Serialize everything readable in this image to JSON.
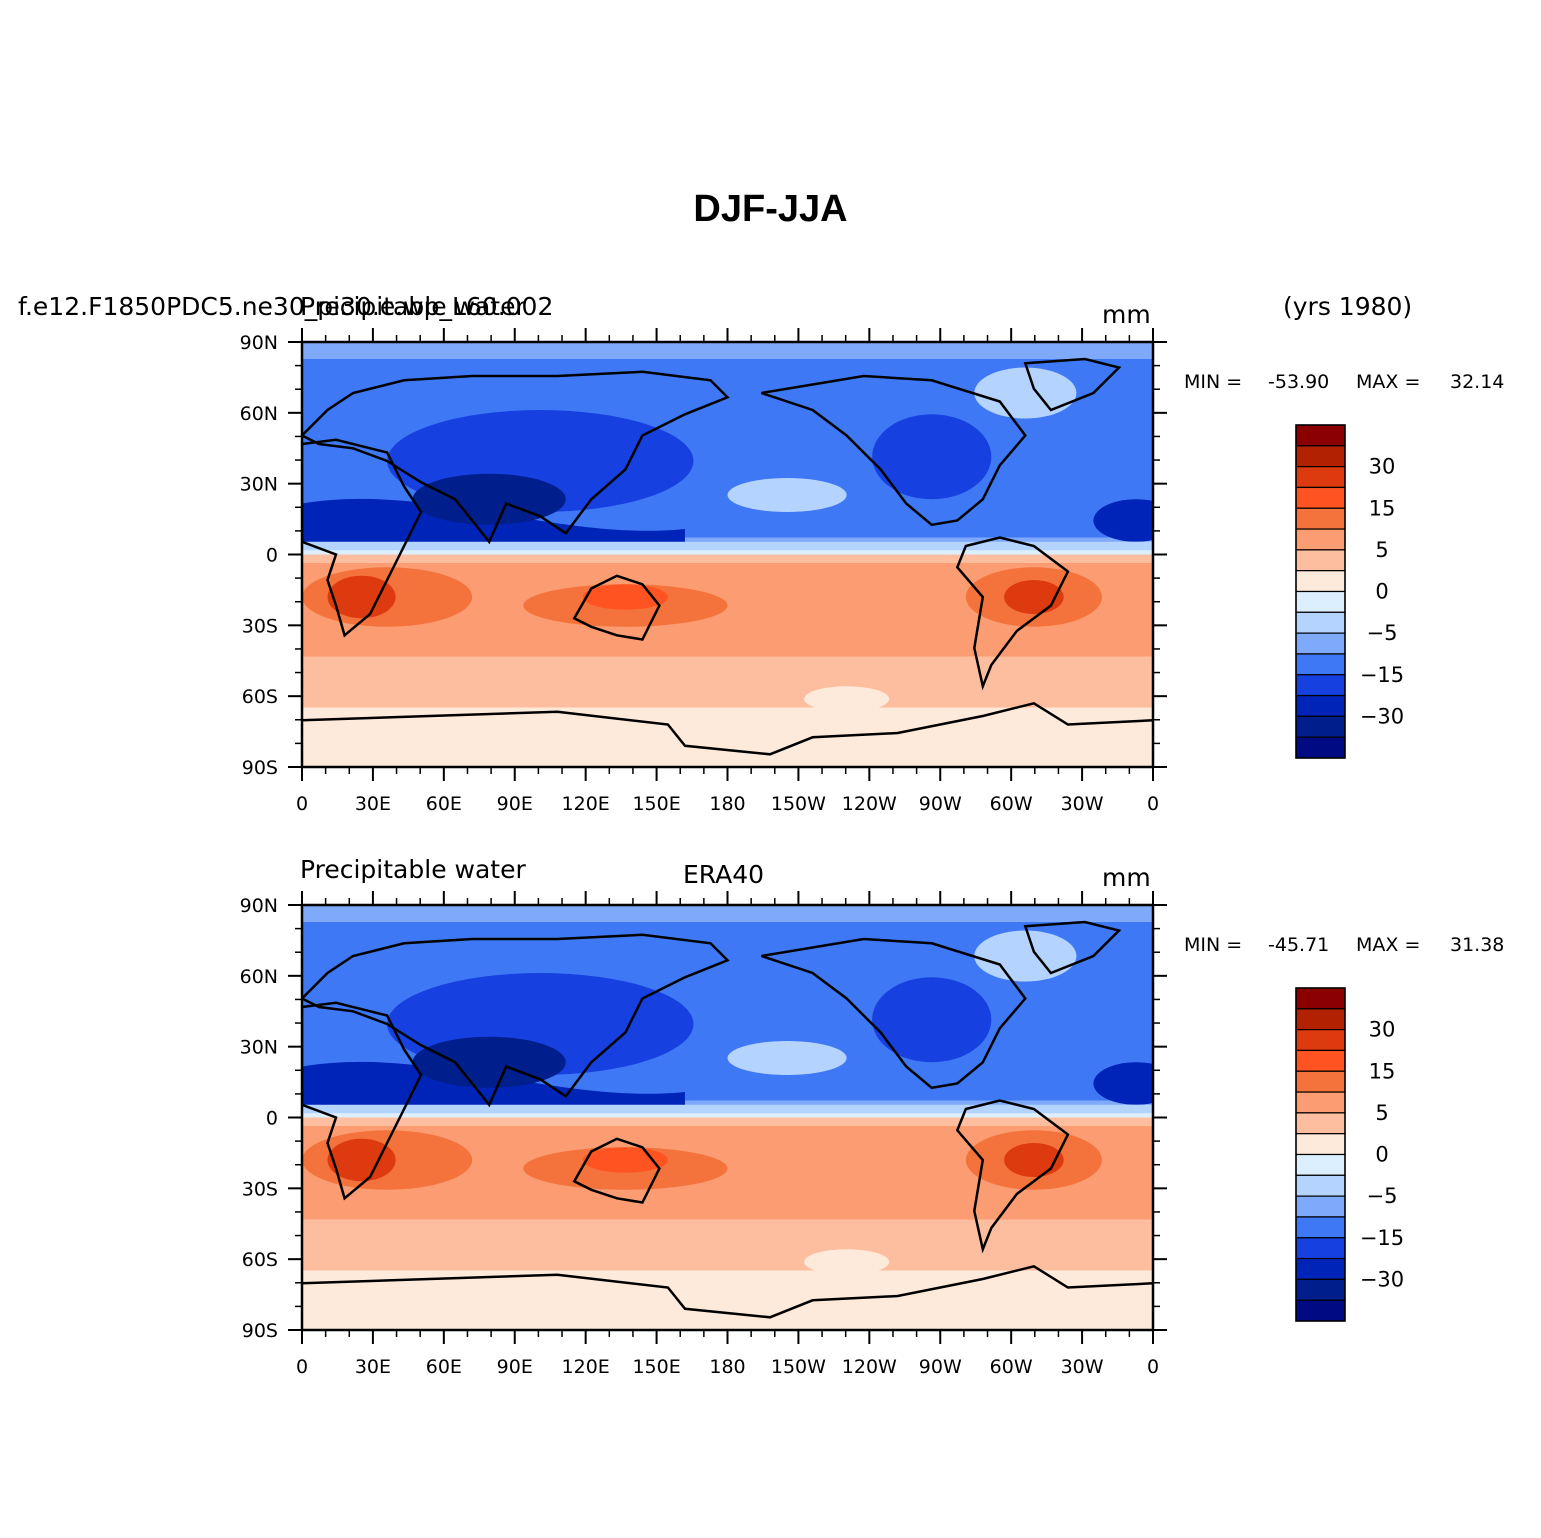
{
  "figure": {
    "title": "DJF-JJA"
  },
  "panels": [
    {
      "left_label": "f.e12.F1850PDC5.ne30_pi30.e.wp_L60.002",
      "left_label2": "Precipitable water",
      "center_label": "",
      "units": "mm",
      "years": "(yrs 1980)",
      "min_label": "MIN =",
      "min_value": "-53.90",
      "max_label": "MAX =",
      "max_value": "32.14"
    },
    {
      "left_label": "Precipitable water",
      "center_label": "ERA40",
      "units": "mm",
      "years": "",
      "min_label": "MIN =",
      "min_value": "-45.71",
      "max_label": "MAX =",
      "max_value": "31.38"
    }
  ],
  "axes": {
    "lat_ticks": [
      "90N",
      "60N",
      "30N",
      "0",
      "30S",
      "60S",
      "90S"
    ],
    "lon_ticks": [
      "0",
      "30E",
      "60E",
      "90E",
      "120E",
      "150E",
      "180",
      "150W",
      "120W",
      "90W",
      "60W",
      "30W",
      "0"
    ]
  },
  "colorbar": {
    "colors": [
      "#8b0000",
      "#b22200",
      "#dd3a0f",
      "#ff5421",
      "#f4733c",
      "#fc9c72",
      "#fdbe9f",
      "#feeadb",
      "#dcefff",
      "#b4d3ff",
      "#7faafc",
      "#3f78f5",
      "#1740e0",
      "#0024b8",
      "#001f8c",
      "#000a82"
    ],
    "labels": [
      "30",
      "15",
      "5",
      "0",
      "-5",
      "-15",
      "-30"
    ]
  },
  "colors": {
    "blue": "#1740e0",
    "red": "#dd3a0f"
  }
}
